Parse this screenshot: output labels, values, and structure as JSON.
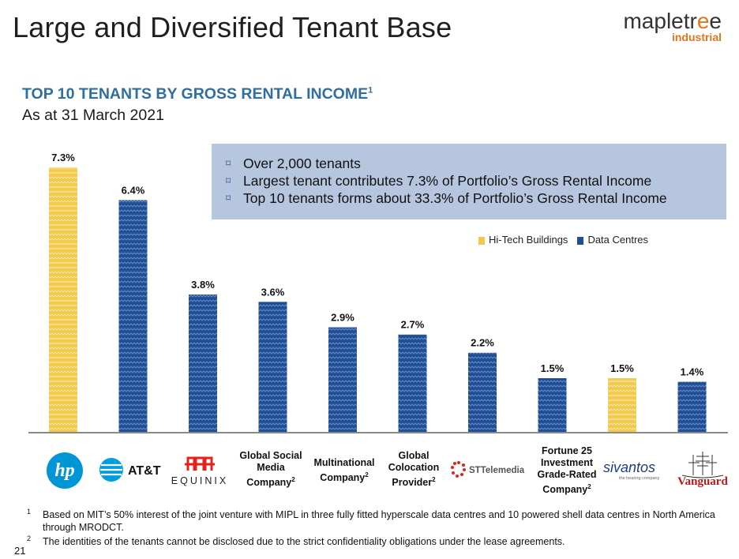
{
  "page": {
    "title": "Large and Diversified Tenant Base",
    "brand_main": "maple",
    "brand_e": "e",
    "brand_rest": "tree",
    "brand_tr": "tr",
    "brand_sub": "industrial",
    "subtitle": "TOP 10 TENANTS BY GROSS RENTAL INCOME",
    "subtitle_sup": "1",
    "as_at": "As at 31 March 2021",
    "page_number": "21"
  },
  "callout": {
    "bullet_icon": "⌑",
    "items": [
      "Over 2,000 tenants",
      "Largest tenant contributes 7.3% of Portfolio’s Gross Rental Income",
      "Top 10 tenants forms about 33.3% of Portfolio’s Gross Rental Income"
    ]
  },
  "legend": {
    "hitech": "Hi-Tech Buildings",
    "datacentre": "Data Centres"
  },
  "logos": {
    "hp": "hp",
    "att": "AT&T",
    "equinix": "EQUINIX",
    "stt": "STTelemedia",
    "sivantos": "sivantos",
    "sivantos_sub": "the hearing company",
    "vanguard": "Vanguard"
  },
  "categories_text": {
    "social": "Global Social Media Company",
    "multinational": "Multinational Company",
    "colocation": "Global Colocation Provider",
    "fortune": "Fortune 25 Investment Grade-Rated Company",
    "sup2": "2"
  },
  "colors": {
    "hitech": "#f2c94c",
    "datacentre": "#1f4f96",
    "accent": "#2f6f9f",
    "brand_orange": "#e2751f"
  },
  "chart_data": {
    "type": "bar",
    "title": "TOP 10 TENANTS BY GROSS RENTAL INCOME",
    "categories": [
      "HP",
      "AT&T",
      "Equinix",
      "Global Social Media Company",
      "Multinational Company",
      "Global Colocation Provider",
      "STTelemedia",
      "Fortune 25 Investment Grade-Rated Company",
      "Sivantos",
      "Vanguard"
    ],
    "values": [
      7.3,
      6.4,
      3.8,
      3.6,
      2.9,
      2.7,
      2.2,
      1.5,
      1.5,
      1.4
    ],
    "labels": [
      "7.3%",
      "6.4%",
      "3.8%",
      "3.6%",
      "2.9%",
      "2.7%",
      "2.2%",
      "1.5%",
      "1.5%",
      "1.4%"
    ],
    "segments": [
      "Hi-Tech Buildings",
      "Data Centres",
      "Data Centres",
      "Data Centres",
      "Data Centres",
      "Data Centres",
      "Data Centres",
      "Data Centres",
      "Hi-Tech Buildings",
      "Data Centres"
    ],
    "unit": "%",
    "ylim": [
      0,
      7.3
    ],
    "legend": [
      "Hi-Tech Buildings",
      "Data Centres"
    ],
    "legend_position": "top-right"
  },
  "footnotes": [
    {
      "num": "1",
      "text": "Based on MIT’s 50% interest of the joint venture with MIPL in three fully fitted hyperscale data centres and 10 powered shell data centres in North America through MRODCT."
    },
    {
      "num": "2",
      "text": "The identities of the tenants cannot be disclosed due to the strict confidentiality obligations under the lease agreements."
    }
  ]
}
